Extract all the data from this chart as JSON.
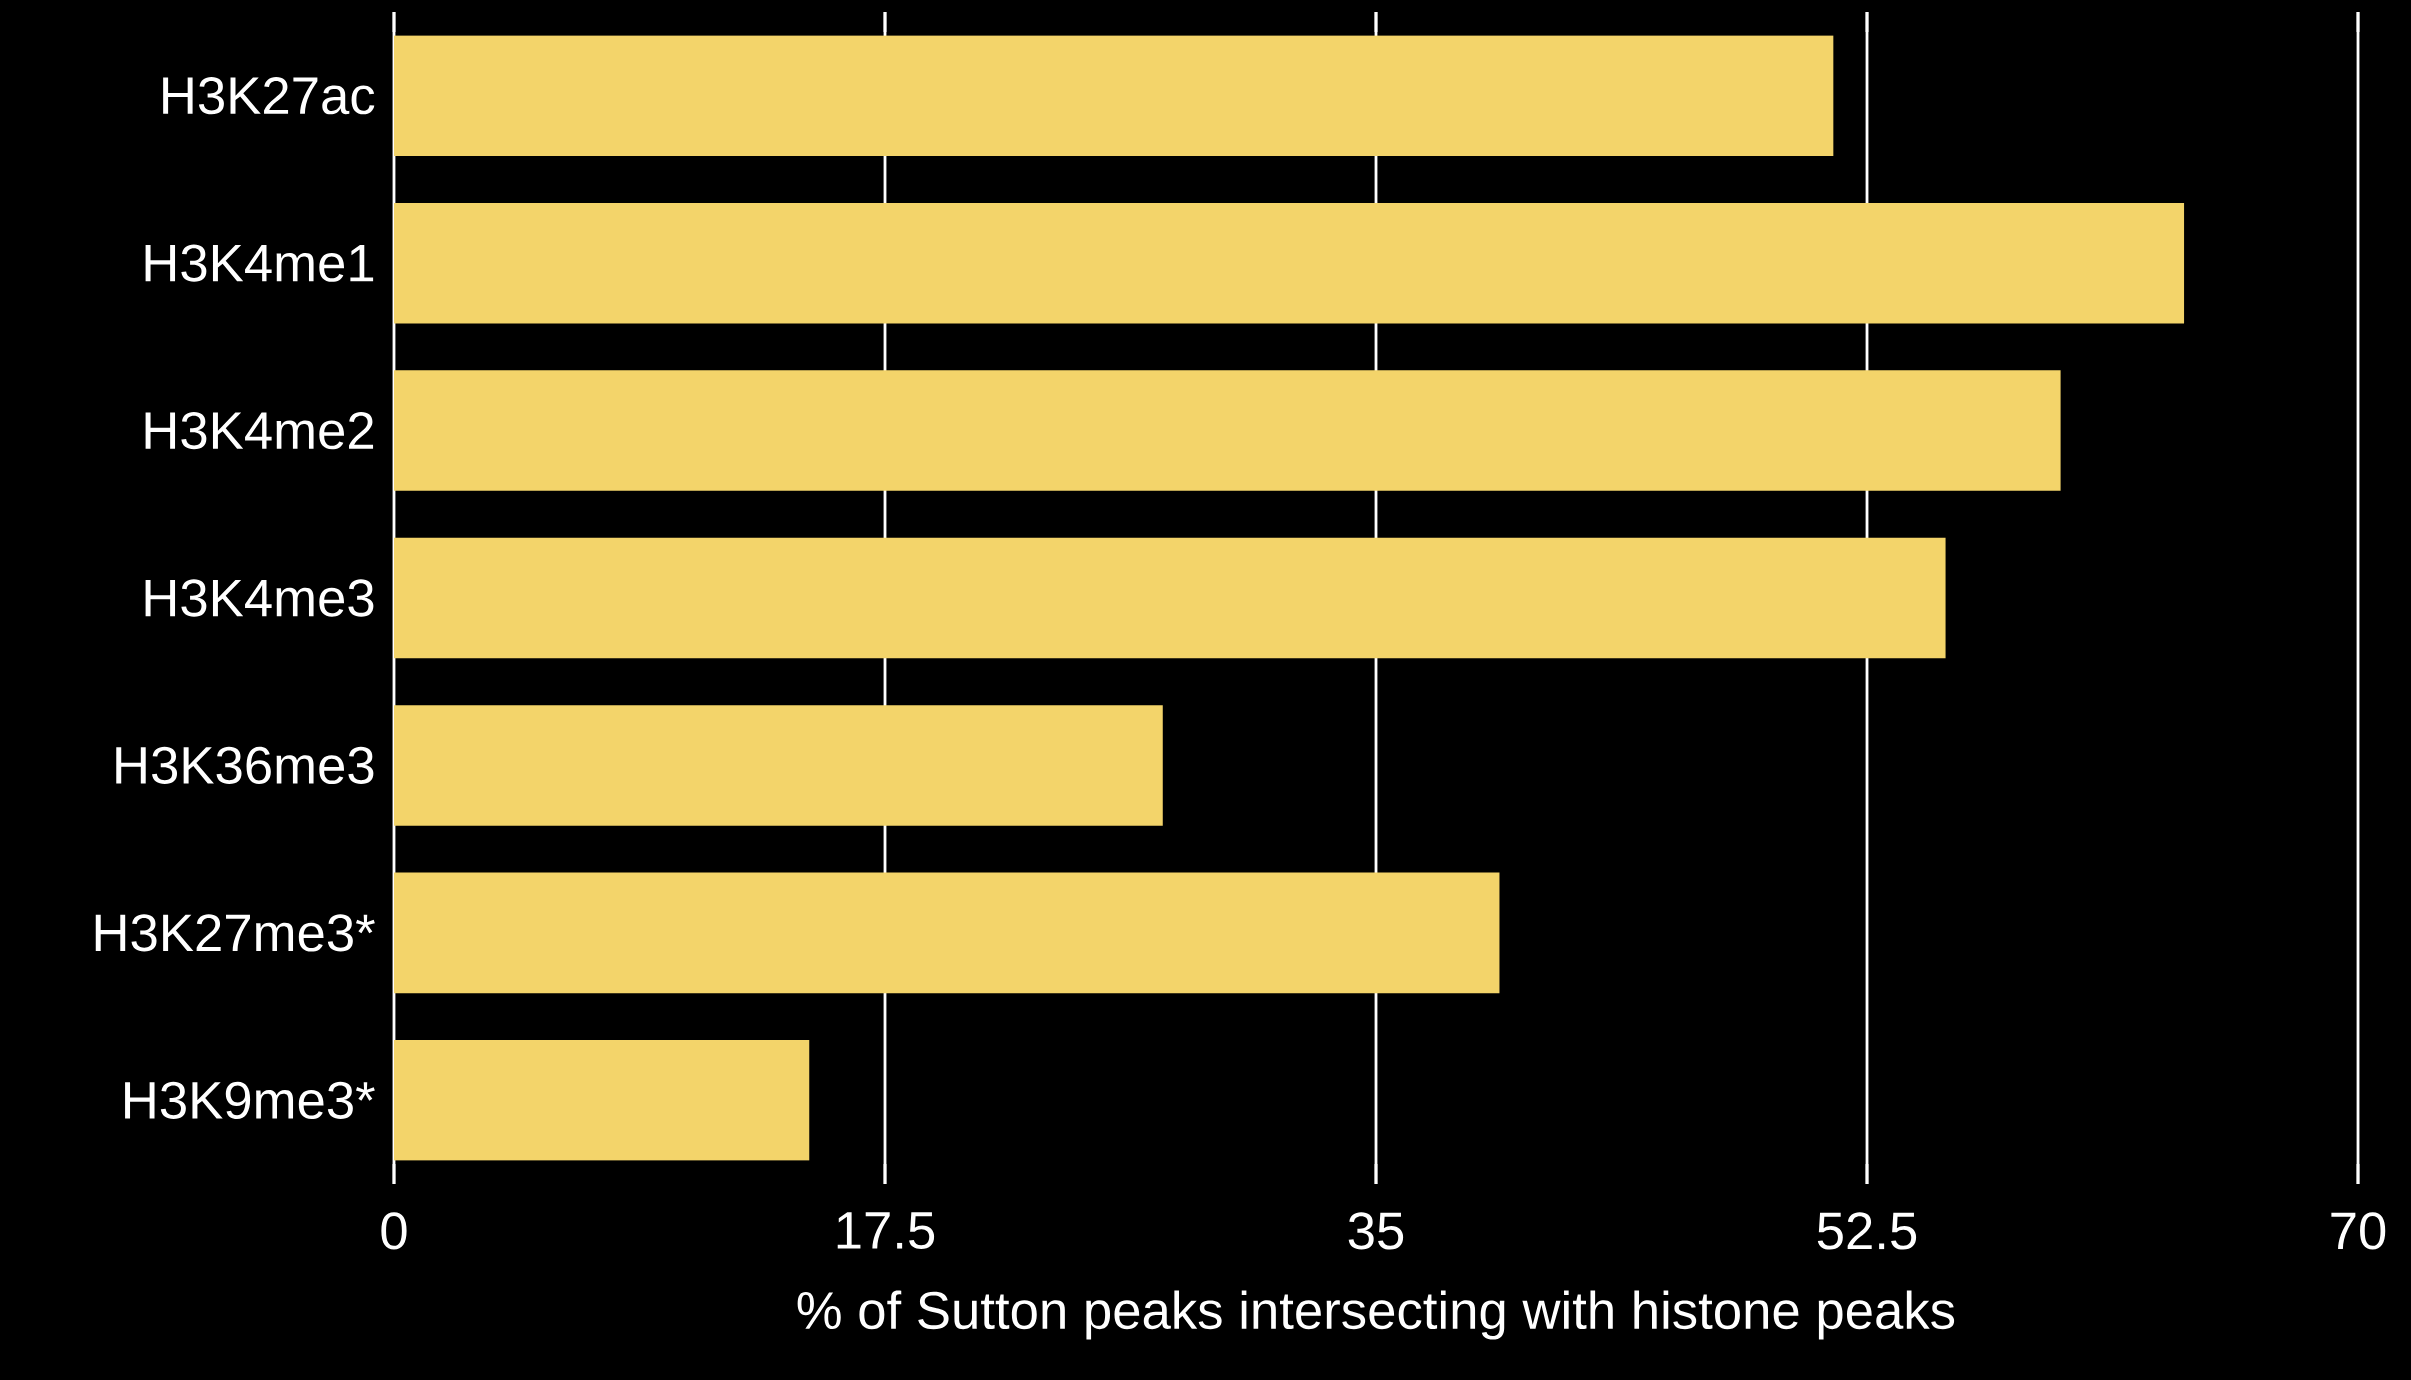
{
  "chart_data": {
    "type": "bar",
    "orientation": "horizontal",
    "categories": [
      "H3K27ac",
      "H3K4me1",
      "H3K4me2",
      "H3K4me3",
      "H3K36me3",
      "H3K27me3*",
      "H3K9me3*"
    ],
    "values": [
      51.3,
      63.8,
      59.4,
      55.3,
      27.4,
      39.4,
      14.8
    ],
    "color": "#f3d46a",
    "xlabel": "% of Sutton peaks intersecting with histone peaks",
    "xlim": [
      0,
      70
    ],
    "xticks": [
      0,
      17.5,
      35,
      52.5,
      70
    ],
    "grid": "x"
  }
}
